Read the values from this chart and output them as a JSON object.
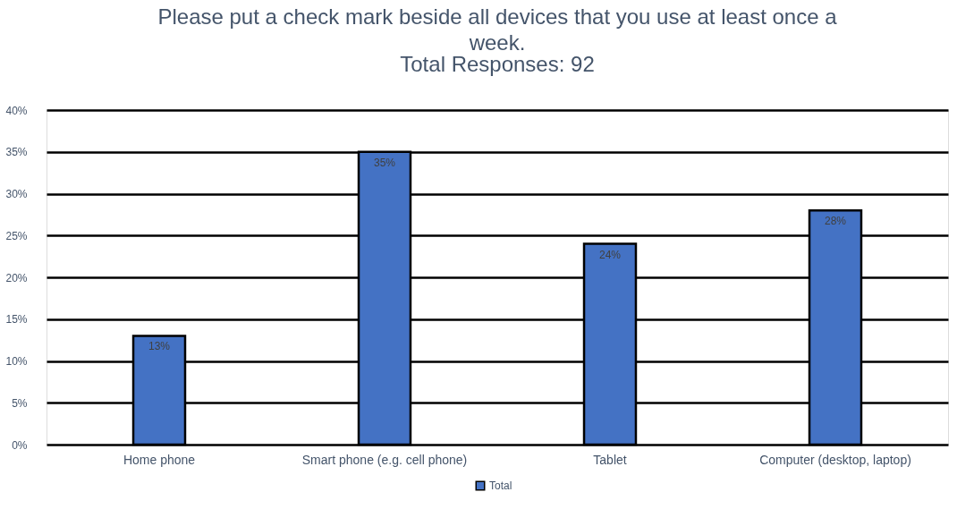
{
  "chart_data": {
    "type": "bar",
    "title": "Please put a check mark beside all devices that you use at least once a week.",
    "subtitle": "Total Responses: 92",
    "categories": [
      "Home phone",
      "Smart phone (e.g. cell phone)",
      "Tablet",
      "Computer (desktop, laptop)"
    ],
    "series": [
      {
        "name": "Total",
        "color": "#4472c4",
        "values": [
          13,
          35,
          24,
          28
        ],
        "value_labels": [
          "13%",
          "35%",
          "24%",
          "28%"
        ]
      }
    ],
    "ylim": [
      0,
      40
    ],
    "yticks": [
      {
        "value": 0,
        "label": "0%"
      },
      {
        "value": 5,
        "label": "5%"
      },
      {
        "value": 10,
        "label": "10%"
      },
      {
        "value": 15,
        "label": "15%"
      },
      {
        "value": 20,
        "label": "20%"
      },
      {
        "value": 25,
        "label": "25%"
      },
      {
        "value": 30,
        "label": "30%"
      },
      {
        "value": 35,
        "label": "35%"
      },
      {
        "value": 40,
        "label": "40%"
      }
    ],
    "grid": "y",
    "legend": "bottom"
  }
}
